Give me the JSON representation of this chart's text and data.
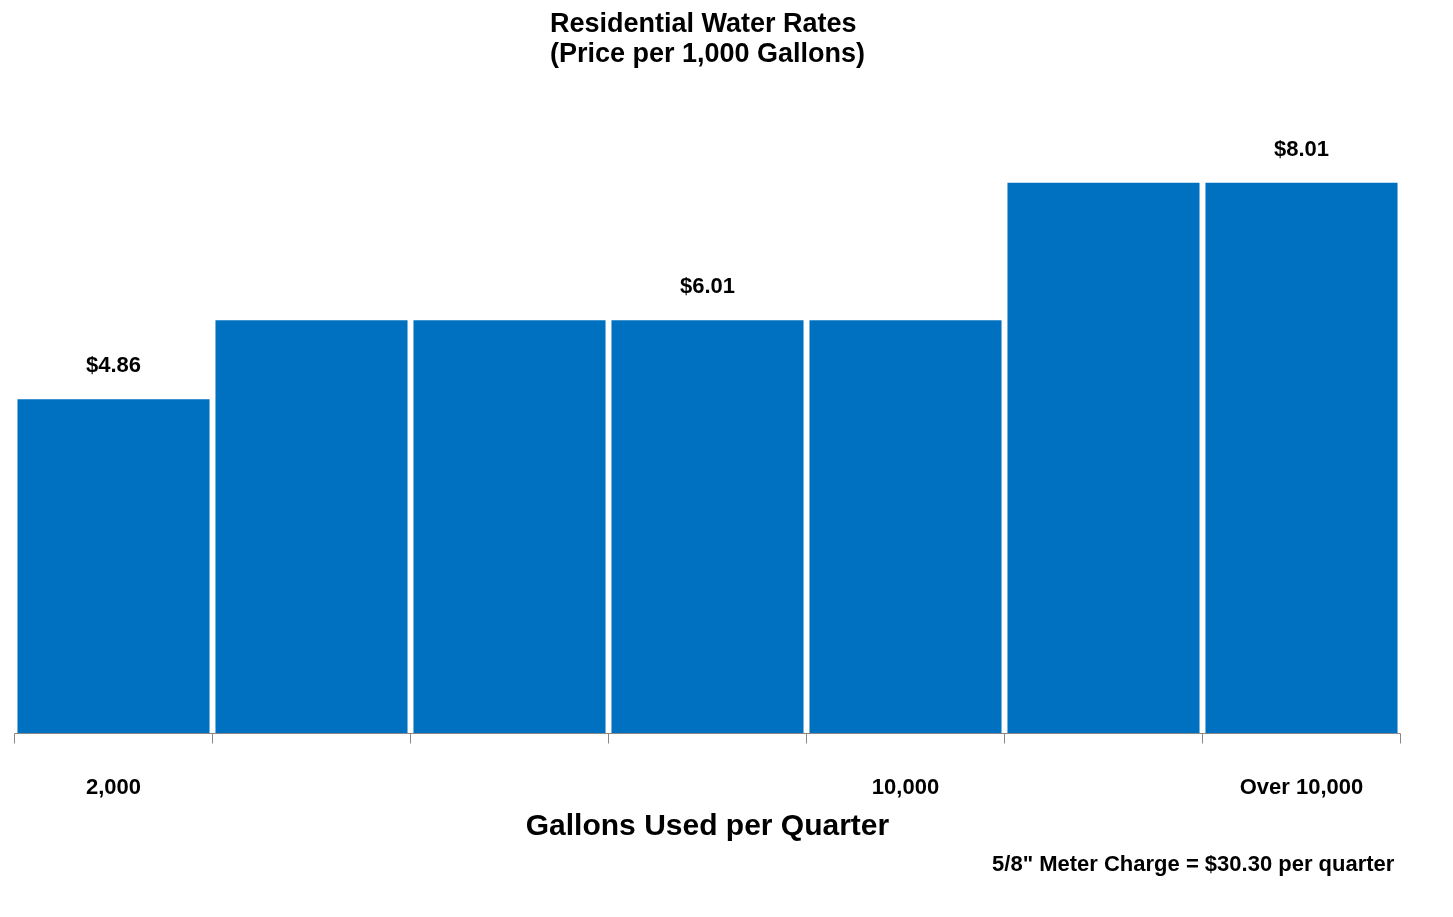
{
  "chart_data": {
    "type": "bar",
    "title": "Residential Water Rates\n(Price per 1,000 Gallons)",
    "xlabel": "Gallons Used per Quarter",
    "categories": [
      "2,000",
      null,
      null,
      null,
      "10,000",
      null,
      "Over 10,000"
    ],
    "values": [
      4.86,
      6.01,
      6.01,
      6.01,
      6.01,
      8.01,
      8.01
    ],
    "value_labels": [
      "$4.86",
      null,
      null,
      "$6.01",
      null,
      null,
      "$8.01"
    ],
    "color": "#0070c0",
    "annotations": [
      "5/8\" Meter Charge =  $30.30 per quarter"
    ]
  }
}
